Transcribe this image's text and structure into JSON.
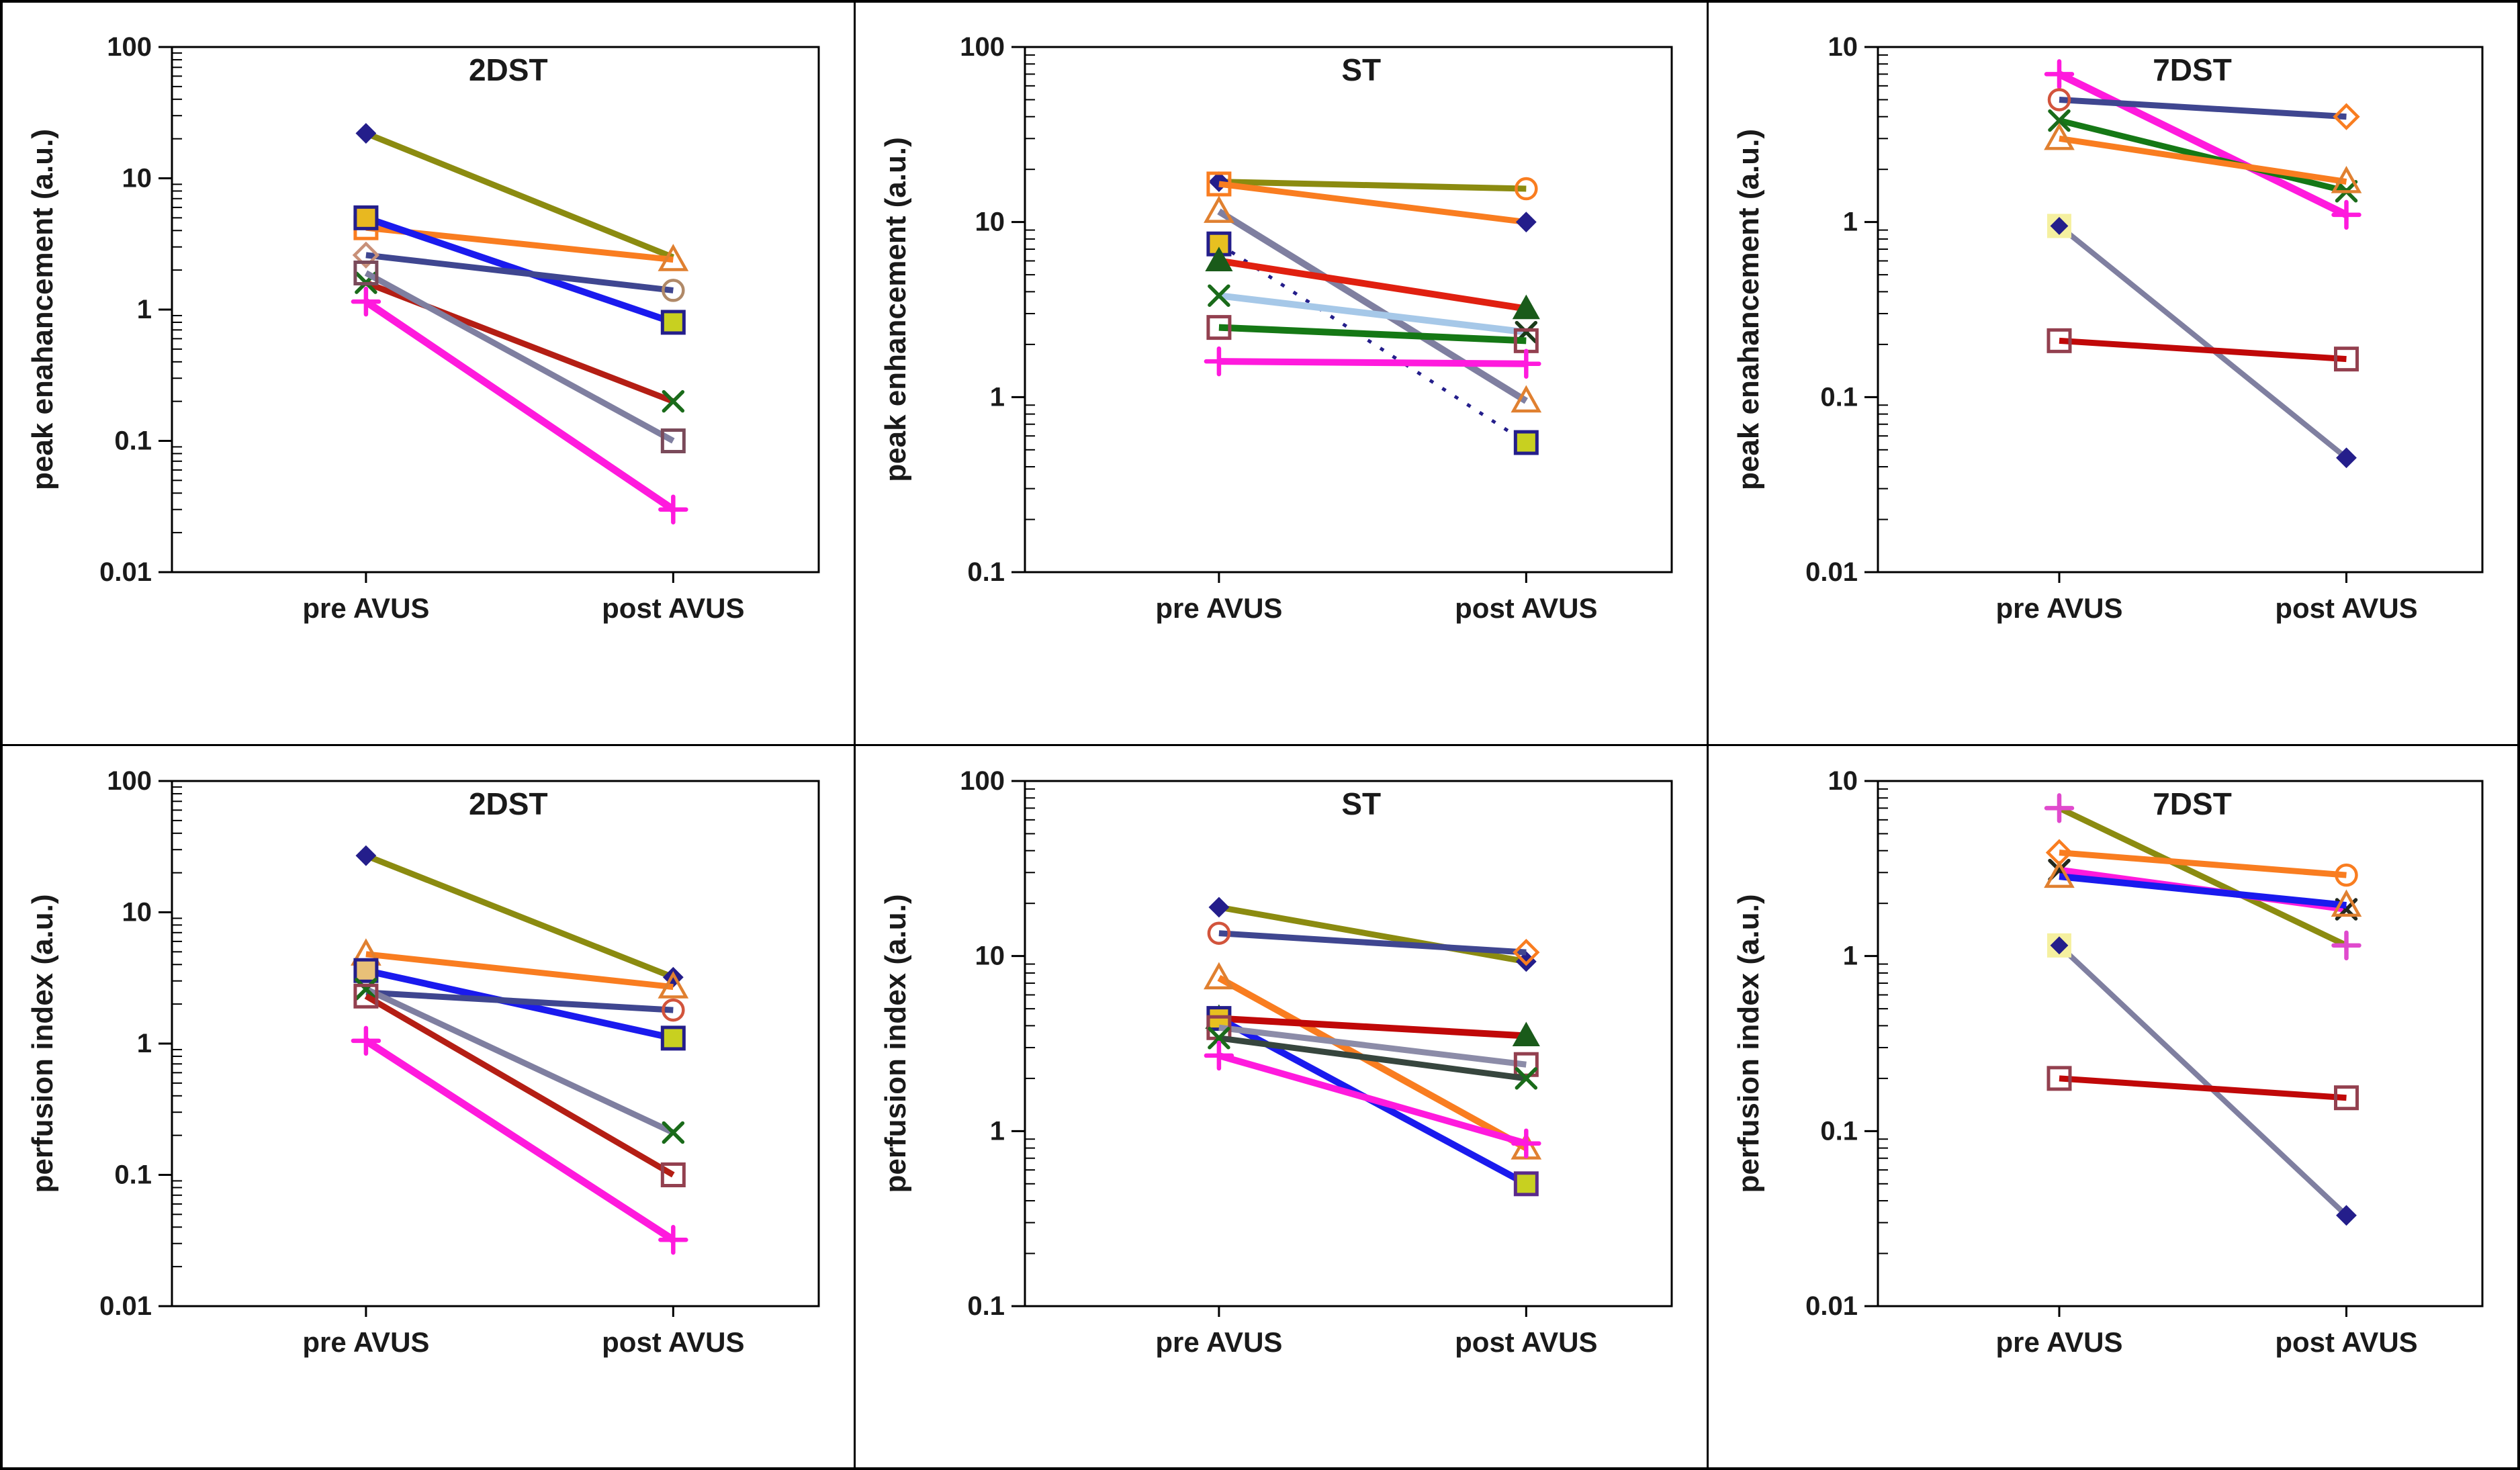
{
  "figure": {
    "background": "#ffffff",
    "border_color": "#000000"
  },
  "axis": {
    "categories": [
      "pre AVUS",
      "post AVUS"
    ],
    "tick_color": "#000000",
    "label_color": "#1a1a1a"
  },
  "chart_data": [
    {
      "type": "line",
      "title": "2DST",
      "ylabel": "peak enahancement (a.u.)",
      "categories": [
        "pre AVUS",
        "post AVUS"
      ],
      "ylim": [
        0.01,
        100
      ],
      "yticks": [
        100,
        10,
        1,
        0.1,
        0.01
      ],
      "grid": false,
      "legend": "none",
      "series": [
        {
          "color": "#8B8B10",
          "width": 9,
          "values": [
            22,
            2.5
          ],
          "m1": {
            "shape": "diamond",
            "color": "#241E8B",
            "fill": "#241E8B"
          },
          "m2": {
            "shape": "none"
          }
        },
        {
          "color": "#F97D20",
          "width": 9,
          "values": [
            4.2,
            2.4
          ],
          "m1": {
            "shape": "square",
            "color": "#F97D20"
          },
          "m2": {
            "shape": "triangle",
            "color": "#E08030"
          }
        },
        {
          "color": "#1A1AEE",
          "width": 10,
          "values": [
            5,
            0.8
          ],
          "m1": {
            "shape": "square",
            "color": "#241E8B",
            "fill": "#E8B820"
          },
          "m2": {
            "shape": "square",
            "color": "#241E8B",
            "fill": "#C8D020"
          }
        },
        {
          "color": "#3F4690",
          "width": 9,
          "values": [
            2.6,
            1.4
          ],
          "m1": {
            "shape": "diamond_open",
            "color": "#C89078"
          },
          "m2": {
            "shape": "circle",
            "color": "#B08968"
          }
        },
        {
          "color": "#B41E14",
          "width": 9,
          "values": [
            1.6,
            0.2
          ],
          "m1": {
            "shape": "x",
            "color": "#1A6B1A"
          },
          "m2": {
            "shape": "x",
            "color": "#1A6B1A"
          }
        },
        {
          "color": "#7F7FA0",
          "width": 9,
          "values": [
            1.9,
            0.1
          ],
          "m1": {
            "shape": "square",
            "color": "#7A4A5A"
          },
          "m2": {
            "shape": "square",
            "color": "#7A4A5A"
          }
        },
        {
          "color": "#FF1ADD",
          "width": 11,
          "values": [
            1.15,
            0.03
          ],
          "m1": {
            "shape": "plus",
            "color": "#FF1ADD"
          },
          "m2": {
            "shape": "plus",
            "color": "#FF1ADD"
          }
        }
      ]
    },
    {
      "type": "line",
      "title": "ST",
      "ylabel": "peak enhancement (a.u.)",
      "categories": [
        "pre AVUS",
        "post AVUS"
      ],
      "ylim": [
        0.1,
        100
      ],
      "yticks": [
        100,
        10,
        1,
        0.1
      ],
      "grid": false,
      "legend": "none",
      "series": [
        {
          "color": "#8B8B10",
          "width": 9,
          "values": [
            17,
            15.5
          ],
          "m1": {
            "shape": "diamond",
            "color": "#241E8B",
            "fill": "#241E8B"
          },
          "m2": {
            "shape": "circle",
            "color": "#F97D20"
          }
        },
        {
          "color": "#F97D20",
          "width": 9,
          "values": [
            16.5,
            10
          ],
          "m1": {
            "shape": "square",
            "color": "#F97D20"
          },
          "m2": {
            "shape": "diamond",
            "color": "#241E8B",
            "fill": "#241E8B"
          }
        },
        {
          "color": "#7F7FA0",
          "width": 10,
          "values": [
            11.5,
            0.95
          ],
          "m1": {
            "shape": "triangle",
            "color": "#E08030"
          },
          "m2": {
            "shape": "triangle",
            "color": "#E08030"
          }
        },
        {
          "color": "#241E8B",
          "width": 5,
          "dash": "6 16",
          "values": [
            7.5,
            0.55
          ],
          "m1": {
            "shape": "square",
            "color": "#241E8B",
            "fill": "#E8C020"
          },
          "m2": {
            "shape": "square",
            "color": "#241E8B",
            "fill": "#C8D020"
          }
        },
        {
          "color": "#E02010",
          "width": 10,
          "values": [
            6,
            3.2
          ],
          "m1": {
            "shape": "triangle_fill",
            "color": "#1A5B1A"
          },
          "m2": {
            "shape": "triangle_fill",
            "color": "#1A5B1A"
          }
        },
        {
          "color": "#A6C8E8",
          "width": 10,
          "values": [
            3.8,
            2.35
          ],
          "m1": {
            "shape": "x",
            "color": "#1A6B1A"
          },
          "m2": {
            "shape": "x",
            "color": "#1A3B1A"
          }
        },
        {
          "color": "#157815",
          "width": 10,
          "values": [
            2.5,
            2.1
          ],
          "m1": {
            "shape": "square",
            "color": "#93404F"
          },
          "m2": {
            "shape": "square",
            "color": "#93404F"
          }
        },
        {
          "color": "#FF1ADD",
          "width": 10,
          "values": [
            1.6,
            1.55
          ],
          "m1": {
            "shape": "plus",
            "color": "#FF1ADD"
          },
          "m2": {
            "shape": "plus",
            "color": "#FF1ADD"
          }
        }
      ]
    },
    {
      "type": "line",
      "title": "7DST",
      "ylabel": "peak enahancement (a.u.)",
      "categories": [
        "pre AVUS",
        "post AVUS"
      ],
      "ylim": [
        0.01,
        10
      ],
      "yticks": [
        10,
        1,
        0.1,
        0.01
      ],
      "grid": false,
      "legend": "none",
      "series": [
        {
          "color": "#FF1ADD",
          "width": 11,
          "values": [
            7,
            1.1
          ],
          "m1": {
            "shape": "plus",
            "color": "#FF1ADD"
          },
          "m2": {
            "shape": "plus",
            "color": "#FF1ADD"
          }
        },
        {
          "color": "#3F4690",
          "width": 9,
          "values": [
            5,
            4
          ],
          "m1": {
            "shape": "circle",
            "color": "#D2543C"
          },
          "m2": {
            "shape": "diamond_open",
            "color": "#F97D20"
          }
        },
        {
          "color": "#157815",
          "width": 9,
          "values": [
            3.8,
            1.5
          ],
          "m1": {
            "shape": "x",
            "color": "#1A6B1A"
          },
          "m2": {
            "shape": "x",
            "color": "#1A6B1A"
          }
        },
        {
          "color": "#F97D20",
          "width": 9,
          "values": [
            3.0,
            1.7
          ],
          "m1": {
            "shape": "triangle",
            "color": "#E08030"
          },
          "m2": {
            "shape": "triangle",
            "color": "#E08030"
          }
        },
        {
          "color": "#7F7FA0",
          "width": 8,
          "values": [
            0.95,
            0.045
          ],
          "m1": {
            "shape": "diamond_halo",
            "color": "#241E8B",
            "fill": "#F5F0A0"
          },
          "m2": {
            "shape": "diamond",
            "color": "#241E8B",
            "fill": "#241E8B"
          }
        },
        {
          "color": "#C00808",
          "width": 9,
          "values": [
            0.21,
            0.165
          ],
          "m1": {
            "shape": "square",
            "color": "#93404F"
          },
          "m2": {
            "shape": "square",
            "color": "#93404F"
          }
        }
      ]
    },
    {
      "type": "line",
      "title": "2DST",
      "ylabel": "perfusion index (a.u.)",
      "categories": [
        "pre AVUS",
        "post AVUS"
      ],
      "ylim": [
        0.01,
        100
      ],
      "yticks": [
        100,
        10,
        1,
        0.1,
        0.01
      ],
      "grid": false,
      "legend": "none",
      "series": [
        {
          "color": "#8B8B10",
          "width": 9,
          "values": [
            27,
            3.2
          ],
          "m1": {
            "shape": "diamond",
            "color": "#241E8B",
            "fill": "#241E8B"
          },
          "m2": {
            "shape": "diamond",
            "color": "#241E8B",
            "fill": "#241E8B"
          }
        },
        {
          "color": "#F97D20",
          "width": 9,
          "values": [
            4.8,
            2.7
          ],
          "m1": {
            "shape": "triangle",
            "color": "#E08030"
          },
          "m2": {
            "shape": "triangle",
            "color": "#E08030"
          }
        },
        {
          "color": "#1A1AEE",
          "width": 10,
          "values": [
            3.6,
            1.1
          ],
          "m1": {
            "shape": "square",
            "color": "#241E8B",
            "fill": "#E8C078"
          },
          "m2": {
            "shape": "square",
            "color": "#241E8B",
            "fill": "#C8D020"
          }
        },
        {
          "color": "#3F4690",
          "width": 9,
          "values": [
            2.45,
            1.8
          ],
          "m1": {
            "shape": "none"
          },
          "m2": {
            "shape": "circle",
            "color": "#D2543C"
          }
        },
        {
          "color": "#7F7FA0",
          "width": 9,
          "values": [
            2.6,
            0.21
          ],
          "m1": {
            "shape": "x",
            "color": "#1A6B1A"
          },
          "m2": {
            "shape": "x",
            "color": "#1A6B1A"
          }
        },
        {
          "color": "#B41E14",
          "width": 9,
          "values": [
            2.3,
            0.1
          ],
          "m1": {
            "shape": "square",
            "color": "#93404F"
          },
          "m2": {
            "shape": "square",
            "color": "#93404F"
          }
        },
        {
          "color": "#FF1ADD",
          "width": 11,
          "values": [
            1.05,
            0.032
          ],
          "m1": {
            "shape": "plus",
            "color": "#FF1ADD"
          },
          "m2": {
            "shape": "plus",
            "color": "#FF1ADD"
          }
        }
      ]
    },
    {
      "type": "line",
      "title": "ST",
      "ylabel": "perfusion index (a.u.)",
      "categories": [
        "pre AVUS",
        "post AVUS"
      ],
      "ylim": [
        0.1,
        100
      ],
      "yticks": [
        100,
        10,
        1,
        0.1
      ],
      "grid": false,
      "legend": "none",
      "series": [
        {
          "color": "#8B8B10",
          "width": 9,
          "values": [
            19,
            9.3
          ],
          "m1": {
            "shape": "diamond",
            "color": "#241E8B",
            "fill": "#241E8B"
          },
          "m2": {
            "shape": "diamond",
            "color": "#241E8B",
            "fill": "#241E8B"
          }
        },
        {
          "color": "#3F4690",
          "width": 9,
          "values": [
            13.5,
            10.5
          ],
          "m1": {
            "shape": "circle",
            "color": "#D2543C"
          },
          "m2": {
            "shape": "diamond_open",
            "color": "#F97D20"
          }
        },
        {
          "color": "#F97D20",
          "width": 10,
          "values": [
            7.5,
            0.8
          ],
          "m1": {
            "shape": "triangle",
            "color": "#E08030"
          },
          "m2": {
            "shape": "triangle",
            "color": "#E08030"
          }
        },
        {
          "color": "#C00808",
          "width": 10,
          "values": [
            4.4,
            3.5
          ],
          "m1": {
            "shape": "triangle_fill",
            "color": "#1A5B1A"
          },
          "m2": {
            "shape": "triangle_fill",
            "color": "#1A5B1A"
          }
        },
        {
          "color": "#1A1AEE",
          "width": 10,
          "values": [
            4.4,
            0.5
          ],
          "m1": {
            "shape": "square",
            "color": "#241E8B",
            "fill": "#E8C020"
          },
          "m2": {
            "shape": "square",
            "color": "#5A2A8B",
            "fill": "#C8D020"
          }
        },
        {
          "color": "#8C8CA8",
          "width": 9,
          "values": [
            3.9,
            2.4
          ],
          "m1": {
            "shape": "square",
            "color": "#93404F"
          },
          "m2": {
            "shape": "square",
            "color": "#93404F"
          }
        },
        {
          "color": "#37463E",
          "width": 9,
          "values": [
            3.4,
            2.0
          ],
          "m1": {
            "shape": "x",
            "color": "#1A6B1A"
          },
          "m2": {
            "shape": "x",
            "color": "#1A6B1A"
          }
        },
        {
          "color": "#FF1ADD",
          "width": 10,
          "values": [
            2.7,
            0.85
          ],
          "m1": {
            "shape": "plus",
            "color": "#FF1ADD"
          },
          "m2": {
            "shape": "plus",
            "color": "#FF1ADD"
          }
        }
      ]
    },
    {
      "type": "line",
      "title": "7DST",
      "ylabel": "perfusion index (a.u.)",
      "categories": [
        "pre AVUS",
        "post AVUS"
      ],
      "ylim": [
        0.01,
        10
      ],
      "yticks": [
        10,
        1,
        0.1,
        0.01
      ],
      "grid": false,
      "legend": "none",
      "series": [
        {
          "color": "#8B8B10",
          "width": 9,
          "values": [
            7,
            1.15
          ],
          "m1": {
            "shape": "plus",
            "color": "#E04ACD"
          },
          "m2": {
            "shape": "plus",
            "color": "#E04ACD"
          }
        },
        {
          "color": "#F97D20",
          "width": 9,
          "values": [
            3.9,
            2.9
          ],
          "m1": {
            "shape": "diamond_open",
            "color": "#F97D20"
          },
          "m2": {
            "shape": "circle",
            "color": "#F97D20"
          }
        },
        {
          "color": "#FF1ADD",
          "width": 10,
          "values": [
            3.1,
            1.85
          ],
          "m1": {
            "shape": "x",
            "color": "#22281E"
          },
          "m2": {
            "shape": "x",
            "color": "#22281E"
          }
        },
        {
          "color": "#1A1AEE",
          "width": 10,
          "values": [
            2.85,
            1.95
          ],
          "m1": {
            "shape": "triangle",
            "color": "#E08030"
          },
          "m2": {
            "shape": "triangle",
            "color": "#E08030"
          }
        },
        {
          "color": "#7F7FA0",
          "width": 8,
          "values": [
            1.15,
            0.033
          ],
          "m1": {
            "shape": "diamond_halo",
            "color": "#241E8B",
            "fill": "#F5F0A0"
          },
          "m2": {
            "shape": "diamond",
            "color": "#241E8B",
            "fill": "#241E8B"
          }
        },
        {
          "color": "#C00808",
          "width": 9,
          "values": [
            0.2,
            0.155
          ],
          "m1": {
            "shape": "square",
            "color": "#93404F"
          },
          "m2": {
            "shape": "square",
            "color": "#93404F"
          }
        }
      ]
    }
  ]
}
